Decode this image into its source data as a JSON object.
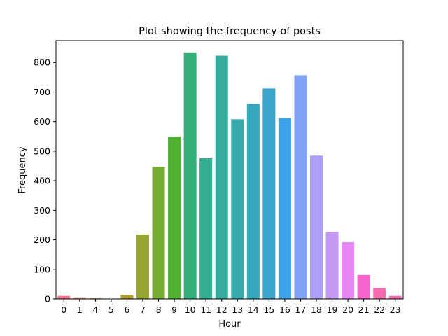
{
  "chart_data": {
    "type": "bar",
    "title": "Plot showing the frequency of posts",
    "xlabel": "Hour",
    "ylabel": "Frequency",
    "categories": [
      "0",
      "1",
      "4",
      "5",
      "6",
      "7",
      "8",
      "9",
      "10",
      "11",
      "12",
      "13",
      "14",
      "15",
      "16",
      "17",
      "18",
      "19",
      "20",
      "21",
      "22",
      "23"
    ],
    "values": [
      10,
      3,
      2,
      1,
      14,
      218,
      447,
      549,
      832,
      476,
      823,
      608,
      660,
      712,
      612,
      757,
      485,
      227,
      192,
      81,
      37,
      10
    ],
    "colors": [
      "#f77189",
      "#f7754f",
      "#dc8932",
      "#c39532",
      "#ae9d31",
      "#97a431",
      "#77ab31",
      "#50b131",
      "#33b07a",
      "#34ae91",
      "#35ac9e",
      "#36aaac",
      "#37a7bb",
      "#39a4cd",
      "#3ba3ec",
      "#82a2f4",
      "#aba0f5",
      "#c399f4",
      "#e887f4",
      "#f565cc",
      "#f66bad",
      "#f66bad"
    ],
    "yticks": [
      0,
      100,
      200,
      300,
      400,
      500,
      600,
      700,
      800
    ],
    "ylim": [
      0,
      874
    ],
    "grid": false,
    "legend": "none"
  }
}
